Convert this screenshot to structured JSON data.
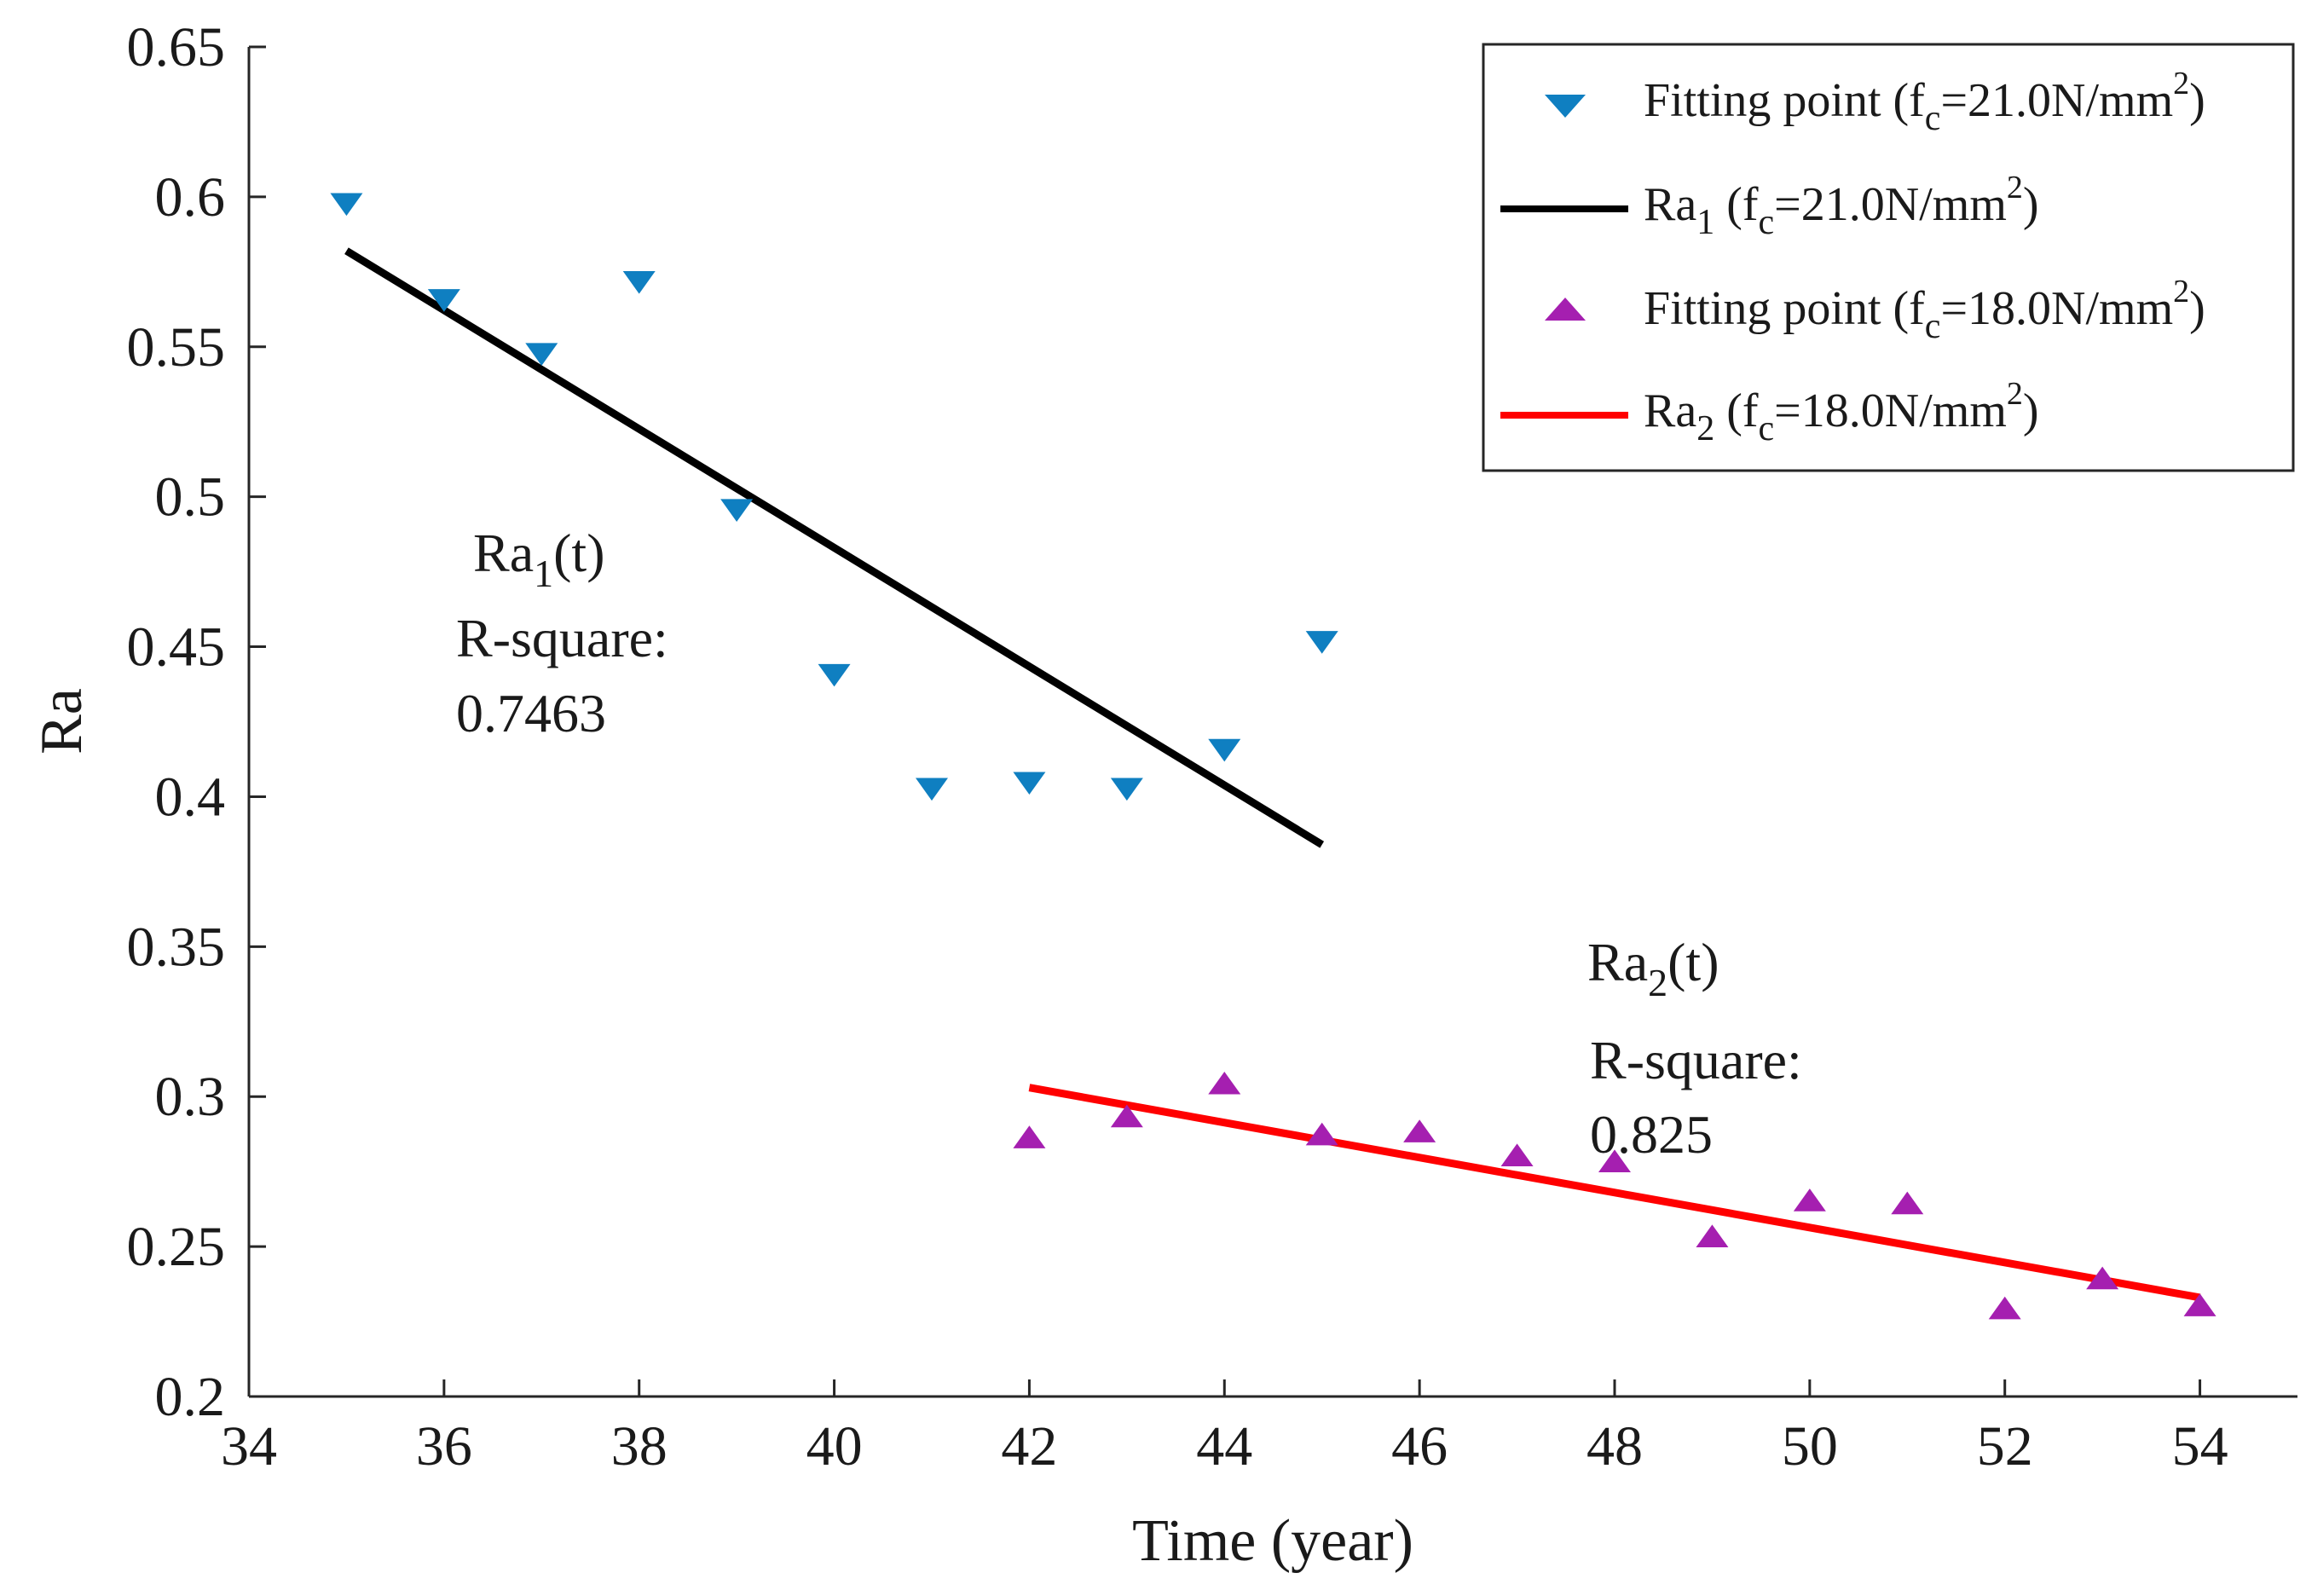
{
  "chart_data": {
    "type": "scatter",
    "xlabel": "Time (year)",
    "ylabel": "Ra",
    "xlim": [
      34,
      55
    ],
    "ylim": [
      0.2,
      0.65
    ],
    "xticks": [
      34,
      36,
      38,
      40,
      42,
      44,
      46,
      48,
      50,
      52,
      54
    ],
    "xtick_labels": [
      "34",
      "36",
      "38",
      "40",
      "42",
      "44",
      "46",
      "48",
      "50",
      "52",
      "54"
    ],
    "yticks": [
      0.2,
      0.25,
      0.3,
      0.35,
      0.4,
      0.45,
      0.5,
      0.55,
      0.6,
      0.65
    ],
    "ytick_labels": [
      "0.2",
      "0.25",
      "0.3",
      "0.35",
      "0.4",
      "0.45",
      "0.5",
      "0.55",
      "0.6",
      "0.65"
    ],
    "grid": false,
    "legend_position": "top-right",
    "series": [
      {
        "name": "Fitting point (fc=21.0N/mm2)",
        "kind": "scatter",
        "marker": "triangle-down",
        "color": "#0f7fc1",
        "x": [
          35,
          36,
          37,
          38,
          39,
          40,
          41,
          42,
          43,
          44,
          45
        ],
        "y": [
          0.598,
          0.566,
          0.548,
          0.572,
          0.496,
          0.441,
          0.403,
          0.405,
          0.403,
          0.416,
          0.452
        ]
      },
      {
        "name": "Ra1 (fc=21.0N/mm2)",
        "kind": "line",
        "color": "#000000",
        "x": [
          35,
          45
        ],
        "y": [
          0.582,
          0.384
        ]
      },
      {
        "name": "Fitting point (fc=18.0N/mm2)",
        "kind": "scatter",
        "marker": "triangle-up",
        "color": "#a51fb0",
        "x": [
          42,
          43,
          44,
          45,
          46,
          47,
          48,
          49,
          50,
          51,
          52,
          53,
          54
        ],
        "y": [
          0.286,
          0.293,
          0.304,
          0.287,
          0.288,
          0.28,
          0.278,
          0.253,
          0.265,
          0.264,
          0.229,
          0.239,
          0.23
        ]
      },
      {
        "name": "Ra2 (fc=18.0N/mm2)",
        "kind": "line",
        "color": "#ff0000",
        "x": [
          42,
          54
        ],
        "y": [
          0.303,
          0.233
        ]
      }
    ],
    "legend": [
      {
        "main": "Fitting point (f",
        "sub": "c",
        "mid": "=21.0N/mm",
        "sup": "2",
        "end": ")"
      },
      {
        "main": "Ra",
        "sub": "1",
        "mid": " (f",
        "sub2": "c",
        "mid2": "=21.0N/mm",
        "sup": "2",
        "end": ")"
      },
      {
        "main": "Fitting point (f",
        "sub": "c",
        "mid": "=18.0N/mm",
        "sup": "2",
        "end": ")"
      },
      {
        "main": "Ra",
        "sub": "2",
        "mid": " (f",
        "sub2": "c",
        "mid2": "=18.0N/mm",
        "sup": "2",
        "end": ")"
      }
    ],
    "annotations": [
      {
        "name": "ra1",
        "head": "Ra",
        "sub": "1",
        "tail": "(t)",
        "line2": "R-square:",
        "line3": "0.7463"
      },
      {
        "name": "ra2",
        "head": "Ra",
        "sub": "2",
        "tail": "(t)",
        "line2": "R-square:",
        "line3": "0.825"
      }
    ]
  }
}
